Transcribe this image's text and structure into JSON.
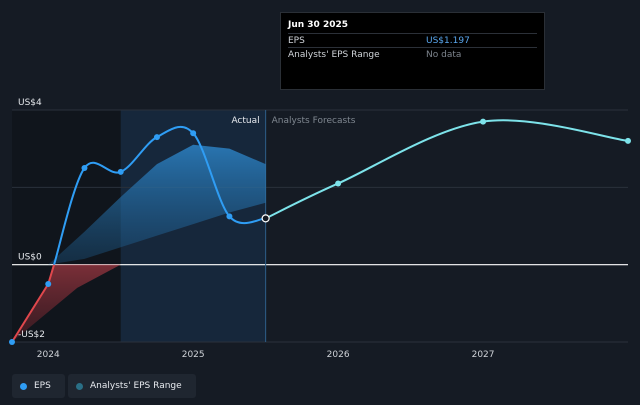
{
  "tooltip": {
    "date": "Jun 30 2025",
    "rows": [
      {
        "label": "EPS",
        "value": "US$1.197",
        "color": "#5aa8f0"
      },
      {
        "label": "Analysts' EPS Range",
        "value": "No data",
        "color": "#7d848d"
      }
    ]
  },
  "legend": [
    {
      "label": "EPS",
      "color": "#2f9df4"
    },
    {
      "label": "Analysts' EPS Range",
      "color": "#2a6f86"
    }
  ],
  "chart_data": {
    "type": "line",
    "actual_label": "Actual",
    "forecast_label": "Analysts Forecasts",
    "y_ticks": [
      {
        "value": 4,
        "label": "US$4"
      },
      {
        "value": 0,
        "label": "US$0"
      },
      {
        "value": -2,
        "label": "-US$2"
      }
    ],
    "x_ticks": [
      {
        "value": 2024.0,
        "label": "2024"
      },
      {
        "value": 2025.0,
        "label": "2025"
      },
      {
        "value": 2026.0,
        "label": "2026"
      },
      {
        "value": 2027.0,
        "label": "2027"
      }
    ],
    "xlim": [
      2023.75,
      2028.0
    ],
    "ylim": [
      -2,
      4
    ],
    "actual_end": 2025.5,
    "highlight_start": 2024.5,
    "series": [
      {
        "name": "EPS",
        "role": "actual",
        "x": [
          2023.75,
          2024.0,
          2024.25,
          2024.5,
          2024.75,
          2025.0,
          2025.25,
          2025.5
        ],
        "y": [
          -2.0,
          -0.5,
          2.5,
          2.4,
          3.3,
          3.4,
          1.25,
          1.197
        ],
        "negative_color": "#e0474c",
        "color": "#2f9df4"
      },
      {
        "name": "EPS Forecast",
        "role": "forecast",
        "x": [
          2025.5,
          2026.0,
          2027.0,
          2028.0
        ],
        "y": [
          1.197,
          2.1,
          3.7,
          3.2
        ],
        "color": "#7de3ea"
      }
    ],
    "range": {
      "x": [
        2023.75,
        2024.0,
        2024.25,
        2024.5,
        2024.75,
        2025.0,
        2025.25,
        2025.5
      ],
      "low": [
        -2.0,
        0.0,
        0.15,
        0.45,
        0.75,
        1.05,
        1.35,
        1.6
      ],
      "high": [
        -2.0,
        0.0,
        0.85,
        1.75,
        2.6,
        3.1,
        3.0,
        2.6
      ]
    },
    "colors": {
      "range_pos": "#2a7fc1",
      "range_neg": "#8a2a32",
      "zero_line": "#ffffff",
      "grid": "#2a313b"
    }
  }
}
